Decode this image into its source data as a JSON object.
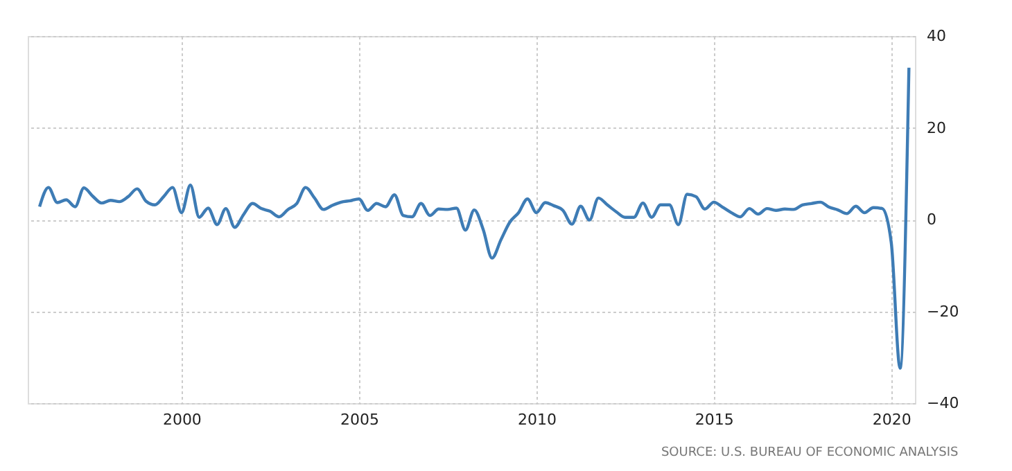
{
  "chart_data": {
    "type": "line",
    "x": [
      "1996-01",
      "1996-04",
      "1996-07",
      "1996-10",
      "1997-01",
      "1997-04",
      "1997-07",
      "1997-10",
      "1998-01",
      "1998-04",
      "1998-07",
      "1998-10",
      "1999-01",
      "1999-04",
      "1999-07",
      "1999-10",
      "2000-01",
      "2000-04",
      "2000-07",
      "2000-10",
      "2001-01",
      "2001-04",
      "2001-07",
      "2001-10",
      "2002-01",
      "2002-04",
      "2002-07",
      "2002-10",
      "2003-01",
      "2003-04",
      "2003-07",
      "2003-10",
      "2004-01",
      "2004-04",
      "2004-07",
      "2004-10",
      "2005-01",
      "2005-04",
      "2005-07",
      "2005-10",
      "2006-01",
      "2006-04",
      "2006-07",
      "2006-10",
      "2007-01",
      "2007-04",
      "2007-07",
      "2007-10",
      "2008-01",
      "2008-04",
      "2008-07",
      "2008-10",
      "2009-01",
      "2009-04",
      "2009-07",
      "2009-10",
      "2010-01",
      "2010-04",
      "2010-07",
      "2010-10",
      "2011-01",
      "2011-04",
      "2011-07",
      "2011-10",
      "2012-01",
      "2012-04",
      "2012-07",
      "2012-10",
      "2013-01",
      "2013-04",
      "2013-07",
      "2013-10",
      "2014-01",
      "2014-04",
      "2014-07",
      "2014-10",
      "2015-01",
      "2015-04",
      "2015-07",
      "2015-10",
      "2016-01",
      "2016-04",
      "2016-07",
      "2016-10",
      "2017-01",
      "2017-04",
      "2017-07",
      "2017-10",
      "2018-01",
      "2018-04",
      "2018-07",
      "2018-10",
      "2019-01",
      "2019-04",
      "2019-07",
      "2019-10",
      "2020-01",
      "2020-04",
      "2020-07"
    ],
    "series": [
      {
        "color": "#3e7cb5",
        "values": [
          2.8,
          7.0,
          3.7,
          4.3,
          2.8,
          6.9,
          5.1,
          3.6,
          4.2,
          3.9,
          5.0,
          6.7,
          4.0,
          3.2,
          5.0,
          7.0,
          1.5,
          7.5,
          0.5,
          2.5,
          -1.1,
          2.4,
          -1.7,
          1.1,
          3.5,
          2.4,
          1.8,
          0.6,
          2.2,
          3.5,
          7.0,
          4.7,
          2.2,
          3.1,
          3.8,
          4.1,
          4.5,
          2.0,
          3.5,
          2.8,
          5.4,
          0.9,
          0.6,
          3.5,
          0.9,
          2.3,
          2.2,
          2.5,
          -2.3,
          2.1,
          -2.1,
          -8.4,
          -4.4,
          -0.6,
          1.5,
          4.5,
          1.5,
          3.7,
          3.0,
          2.0,
          -1.0,
          2.9,
          -0.1,
          4.7,
          3.2,
          1.7,
          0.5,
          0.5,
          3.6,
          0.5,
          3.2,
          3.2,
          -1.1,
          5.5,
          5.0,
          2.3,
          3.8,
          2.7,
          1.5,
          0.6,
          2.4,
          1.2,
          2.4,
          2.0,
          2.3,
          2.2,
          3.2,
          3.5,
          3.8,
          2.7,
          2.1,
          1.3,
          2.9,
          1.5,
          2.6,
          2.4,
          -5.0,
          -32.4,
          33.1
        ]
      }
    ],
    "xlim": [
      "1995-09-01",
      "2020-09-01"
    ],
    "xticks": [
      "2000",
      "2005",
      "2010",
      "2015",
      "2020"
    ],
    "ylim": [
      -40,
      40
    ],
    "yticks": [
      -40,
      -20,
      0,
      20,
      40
    ],
    "grid": true,
    "marker": "none",
    "line_style": "solid",
    "legend": false,
    "annotations": [
      "SOURCE: U.S. BUREAU OF ECONOMIC ANALYSIS"
    ]
  }
}
